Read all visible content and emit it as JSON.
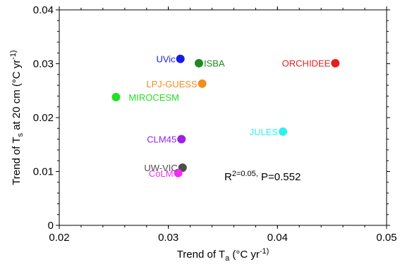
{
  "chart_data": {
    "type": "scatter",
    "xlabel": "Trend of T_a (°C yr^-1)",
    "ylabel": "Trend of T_s at 20 cm (°C yr^-1)",
    "xlim": [
      0.02,
      0.05
    ],
    "ylim": [
      0,
      0.04
    ],
    "xticks": [
      "0.02",
      "0.03",
      "0.04",
      "0.05"
    ],
    "yticks": [
      "0",
      "0.01",
      "0.02",
      "0.03",
      "0.04"
    ],
    "annotation": "R2=0.05, P=0.552",
    "points": [
      {
        "label": "UVic",
        "x": 0.0311,
        "y": 0.0309,
        "color": "#1a1ae6"
      },
      {
        "label": "ISBA",
        "x": 0.0328,
        "y": 0.0301,
        "color": "#1f8a1f"
      },
      {
        "label": "ORCHIDEE",
        "x": 0.0453,
        "y": 0.0301,
        "color": "#e61e1e"
      },
      {
        "label": "LPJ-GUESS",
        "x": 0.0331,
        "y": 0.0263,
        "color": "#f28c1e"
      },
      {
        "label": "MIROCESM",
        "x": 0.0252,
        "y": 0.0238,
        "color": "#22e022"
      },
      {
        "label": "JULES",
        "x": 0.0405,
        "y": 0.0174,
        "color": "#33eef0"
      },
      {
        "label": "CLM45",
        "x": 0.0312,
        "y": 0.016,
        "color": "#9a22e6"
      },
      {
        "label": "UW-VIC",
        "x": 0.0313,
        "y": 0.0107,
        "color": "#4d4d4d"
      },
      {
        "label": "CoLM",
        "x": 0.0309,
        "y": 0.0097,
        "color": "#f02ef0"
      }
    ],
    "grid": false,
    "legend": "none"
  }
}
